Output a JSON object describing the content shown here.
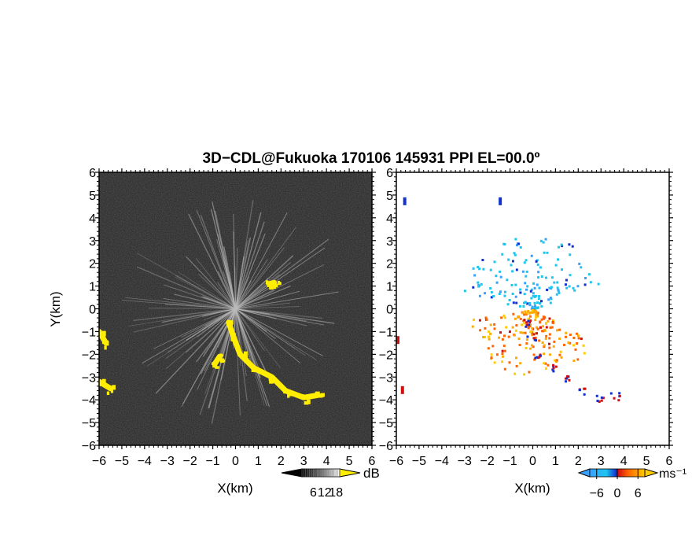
{
  "title": "3D−CDL@Fukuoka 170106 145931 PPI EL=00.0º",
  "chart_data": [
    {
      "type": "heatmap",
      "name": "reflectivity-ppi",
      "xlabel": "X(km)",
      "ylabel": "Y(km)",
      "xlim": [
        -6,
        6
      ],
      "ylim": [
        -6,
        6
      ],
      "xticks": [
        "−6",
        "−5",
        "−4",
        "−3",
        "−2",
        "−1",
        "0",
        "1",
        "2",
        "3",
        "4",
        "5",
        "6"
      ],
      "yticks": [
        "6",
        "5",
        "4",
        "3",
        "2",
        "1",
        "0",
        "−1",
        "−2",
        "−3",
        "−4",
        "−5",
        "−6"
      ],
      "background_color": "#2b2b2b",
      "highlight_color": "#ffee00",
      "colorbar": {
        "unit": "dB",
        "tick_labels": [
          "6",
          "12",
          "18"
        ],
        "ticks": [
          6,
          12,
          18
        ],
        "range": [
          0,
          20
        ],
        "colors": [
          "#000000",
          "#ffffff"
        ],
        "over_color": "#ffee00"
      },
      "features": [
        {
          "x": [
            -0.3,
            -0.1,
            0.2,
            0.8,
            1.6,
            2.2,
            3.0,
            3.6
          ],
          "y": [
            -0.6,
            -1.2,
            -2.0,
            -2.6,
            -3.0,
            -3.6,
            -3.9,
            -3.8
          ]
        },
        {
          "x": [
            -6.0,
            -5.7
          ],
          "y": [
            -1.0,
            -1.5
          ]
        },
        {
          "x": [
            -6.0,
            -5.5
          ],
          "y": [
            -3.2,
            -3.5
          ]
        },
        {
          "x": [
            -0.9,
            -0.7
          ],
          "y": [
            -2.4,
            -2.1
          ]
        },
        {
          "x": [
            1.5,
            1.7
          ],
          "y": [
            1.1,
            1.15
          ]
        }
      ]
    },
    {
      "type": "heatmap",
      "name": "doppler-velocity-ppi",
      "xlabel": "X(km)",
      "xlim": [
        -6,
        6
      ],
      "ylim": [
        -6,
        6
      ],
      "xticks": [
        "−6",
        "−5",
        "−4",
        "−3",
        "−2",
        "−1",
        "0",
        "1",
        "2",
        "3",
        "4",
        "5",
        "6"
      ],
      "yticks": [
        "6",
        "5",
        "4",
        "3",
        "2",
        "1",
        "0",
        "−1",
        "−2",
        "−3",
        "−4",
        "−5",
        "−6"
      ],
      "colorbar": {
        "unit": "ms⁻¹",
        "tick_labels": [
          "−6",
          "0",
          "6"
        ],
        "ticks": [
          -6,
          0,
          6
        ],
        "range": [
          -8,
          8
        ],
        "colors": [
          "#3aa0ff",
          "#1cc6f0",
          "#1030d0",
          "#d01010",
          "#ff6600",
          "#ffaa00",
          "#ffcc00"
        ]
      },
      "features": [
        {
          "label": "-6",
          "x": [
            0.0,
            -1.5,
            -2.0,
            -0.5,
            0.8,
            1.6
          ],
          "y": [
            0.0,
            1.0,
            2.0,
            3.0,
            2.5,
            1.5
          ]
        },
        {
          "label": "6",
          "x": [
            0.0,
            -1.5,
            -3.5,
            0.5,
            1.5,
            2.5
          ],
          "y": [
            0.0,
            -0.3,
            -0.9,
            -1.5,
            -1.5,
            -1.8
          ]
        }
      ]
    }
  ]
}
